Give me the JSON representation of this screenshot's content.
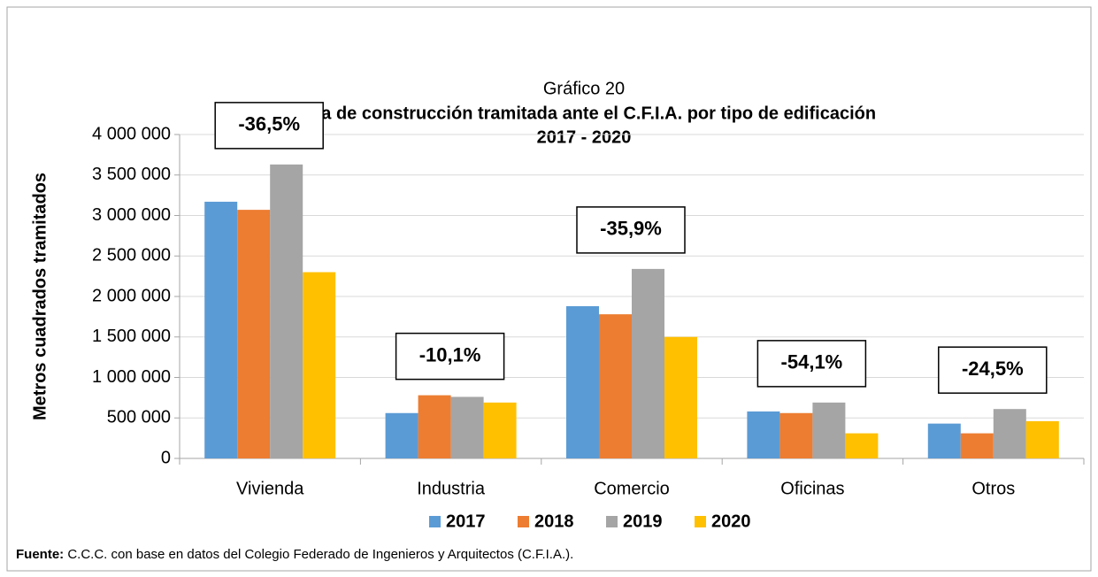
{
  "chart_data": {
    "type": "bar",
    "title": "Gráfico 20",
    "subtitle": "Área de construcción tramitada ante el C.F.I.A. por tipo de edificación",
    "period": "2017 - 2020",
    "y_label": "Metros cuadrados tramitados",
    "categories": [
      "Vivienda",
      "Industria",
      "Comercio",
      "Oficinas",
      "Otros"
    ],
    "series": [
      {
        "name": "2017",
        "color": "#5b9bd5",
        "values": [
          3170000,
          560000,
          1880000,
          580000,
          430000
        ]
      },
      {
        "name": "2018",
        "color": "#ed7d31",
        "values": [
          3070000,
          780000,
          1780000,
          560000,
          310000
        ]
      },
      {
        "name": "2019",
        "color": "#a5a5a5",
        "values": [
          3630000,
          760000,
          2340000,
          690000,
          610000
        ]
      },
      {
        "name": "2020",
        "color": "#ffc000",
        "values": [
          2300000,
          690000,
          1500000,
          310000,
          460000
        ]
      }
    ],
    "annotations": [
      "-36,5%",
      "-10,1%",
      "-35,9%",
      "-54,1%",
      "-24,5%"
    ],
    "ylim": [
      0,
      4000000
    ],
    "yticks": [
      0,
      {
        "value": 500000,
        "label": "500 000"
      },
      {
        "value": 1000000,
        "label": "1 000 000"
      },
      {
        "value": 1500000,
        "label": "1 500 000"
      },
      {
        "value": 2000000,
        "label": "2 000 000"
      },
      {
        "value": 2500000,
        "label": "2 500 000"
      },
      {
        "value": 3000000,
        "label": "3 000 000"
      },
      {
        "value": 3500000,
        "label": "3 500 000"
      },
      {
        "value": 4000000,
        "label": "4 000 000"
      }
    ],
    "grid": true,
    "legend": "bottom",
    "source_label": "Fuente:",
    "source": "C.C.C. con base en datos del Colegio Federado de Ingenieros y Arquitectos (C.F.I.A.)."
  }
}
